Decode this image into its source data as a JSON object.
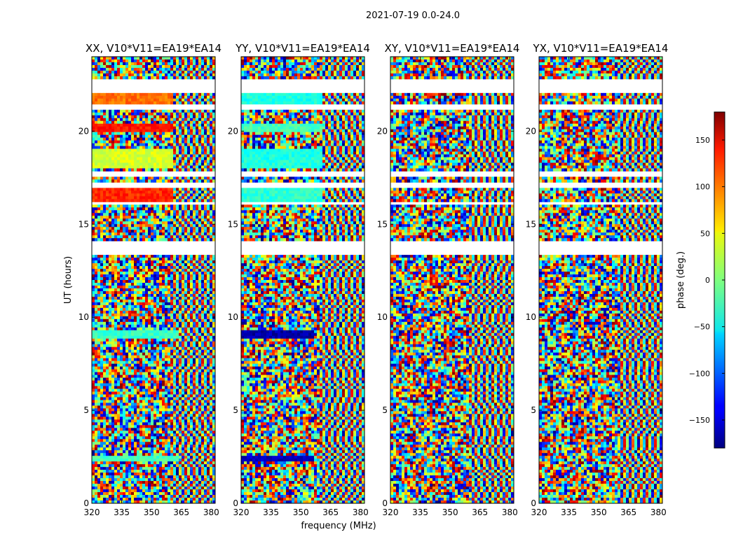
{
  "figure": {
    "suptitle": "2021-07-19 0.0-24.0",
    "xlabel": "frequency (MHz)",
    "ylabel": "UT (hours)",
    "colorbar_label": "phase (deg.)",
    "colormap": "jet"
  },
  "chart_data": {
    "type": "heatmap",
    "xlim": [
      320,
      382
    ],
    "ylim": [
      0,
      24
    ],
    "x_ticks": [
      320,
      335,
      350,
      365,
      380
    ],
    "y_ticks": [
      0,
      5,
      10,
      15,
      20
    ],
    "colorbar": {
      "range": [
        -180,
        180
      ],
      "ticks": [
        150,
        100,
        50,
        0,
        -50,
        -100,
        -150
      ]
    },
    "flagged_ut_ranges": [
      [
        13.3,
        14.1
      ],
      [
        14.8,
        14.9
      ],
      [
        16.0,
        16.2
      ],
      [
        17.0,
        17.3
      ],
      [
        17.6,
        17.8
      ],
      [
        21.2,
        21.5
      ],
      [
        22.1,
        22.8
      ]
    ],
    "panels": [
      {
        "title": "XX, V10*V11=EA19*EA14",
        "calibrated_bands": [
          {
            "ut": [
              21.4,
              22.1
            ],
            "phase": 95,
            "freq_max": 361
          },
          {
            "ut": [
              19.9,
              20.4
            ],
            "phase": 125,
            "freq_max": 361
          },
          {
            "ut": [
              18.0,
              19.1
            ],
            "phase": 30,
            "freq_max": 361
          },
          {
            "ut": [
              16.0,
              17.0
            ],
            "phase": 120,
            "freq_max": 361
          },
          {
            "ut": [
              8.8,
              9.3
            ],
            "phase": -25,
            "freq_max": 364
          },
          {
            "ut": [
              2.2,
              2.5
            ],
            "phase": -20,
            "freq_max": 364
          }
        ]
      },
      {
        "title": "YY, V10*V11=EA19*EA14",
        "calibrated_bands": [
          {
            "ut": [
              21.4,
              22.1
            ],
            "phase": -35,
            "freq_max": 361
          },
          {
            "ut": [
              19.9,
              20.4
            ],
            "phase": -20,
            "freq_max": 361
          },
          {
            "ut": [
              18.0,
              19.1
            ],
            "phase": -35,
            "freq_max": 361
          },
          {
            "ut": [
              16.0,
              17.0
            ],
            "phase": -30,
            "freq_max": 361
          },
          {
            "ut": [
              8.8,
              9.3
            ],
            "phase": -165,
            "freq_max": 356
          },
          {
            "ut": [
              2.2,
              2.5
            ],
            "phase": -160,
            "freq_max": 356
          }
        ]
      },
      {
        "title": "XY, V10*V11=EA19*EA14",
        "calibrated_bands": []
      },
      {
        "title": "YX, V10*V11=EA19*EA14",
        "calibrated_bands": []
      }
    ]
  }
}
